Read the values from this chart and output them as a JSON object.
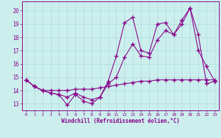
{
  "xlabel": "Windchill (Refroidissement éolien,°C)",
  "background_color": "#cceeed",
  "grid_color": "#aadddd",
  "line_color": "#880088",
  "xlim": [
    -0.5,
    23.5
  ],
  "ylim": [
    12.5,
    20.7
  ],
  "yticks": [
    13,
    14,
    15,
    16,
    17,
    18,
    19,
    20
  ],
  "xticks": [
    0,
    1,
    2,
    3,
    4,
    5,
    6,
    7,
    8,
    9,
    10,
    11,
    12,
    13,
    14,
    15,
    16,
    17,
    18,
    19,
    20,
    21,
    22,
    23
  ],
  "line1_x": [
    0,
    1,
    2,
    3,
    4,
    5,
    6,
    7,
    8,
    9,
    10,
    11,
    12,
    13,
    14,
    15,
    16,
    17,
    18,
    19,
    20,
    21,
    22,
    23
  ],
  "line1_y": [
    14.8,
    14.3,
    14.0,
    13.8,
    13.7,
    12.9,
    13.7,
    13.2,
    13.0,
    13.5,
    14.7,
    16.6,
    19.1,
    19.5,
    17.0,
    16.8,
    19.0,
    19.1,
    18.2,
    19.3,
    20.2,
    17.0,
    15.8,
    14.7
  ],
  "line2_x": [
    0,
    1,
    2,
    3,
    4,
    5,
    6,
    7,
    8,
    9,
    10,
    11,
    12,
    13,
    14,
    15,
    16,
    17,
    18,
    19,
    20,
    21,
    22,
    23
  ],
  "line2_y": [
    14.8,
    14.3,
    14.0,
    13.8,
    13.7,
    13.5,
    13.8,
    13.5,
    13.3,
    13.5,
    14.5,
    15.0,
    16.5,
    17.5,
    16.6,
    16.5,
    17.8,
    18.5,
    18.2,
    19.0,
    20.2,
    18.2,
    14.5,
    14.7
  ],
  "line3_x": [
    0,
    1,
    2,
    3,
    4,
    5,
    6,
    7,
    8,
    9,
    10,
    11,
    12,
    13,
    14,
    15,
    16,
    17,
    18,
    19,
    20,
    21,
    22,
    23
  ],
  "line3_y": [
    14.8,
    14.3,
    14.0,
    14.0,
    14.0,
    14.0,
    14.1,
    14.1,
    14.1,
    14.2,
    14.3,
    14.4,
    14.5,
    14.6,
    14.7,
    14.7,
    14.8,
    14.8,
    14.8,
    14.8,
    14.8,
    14.8,
    14.8,
    14.8
  ]
}
